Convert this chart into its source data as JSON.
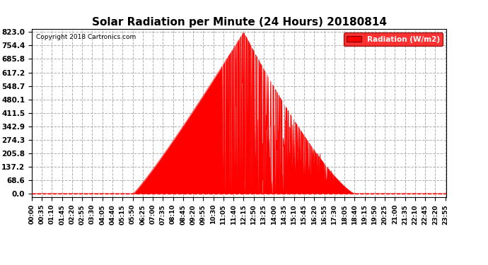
{
  "title": "Solar Radiation per Minute (24 Hours) 20180814",
  "copyright_text": "Copyright 2018 Cartronics.com",
  "legend_label": "Radiation (W/m2)",
  "y_ticks": [
    0.0,
    68.6,
    137.2,
    205.8,
    274.3,
    342.9,
    411.5,
    480.1,
    548.7,
    617.2,
    685.8,
    754.4,
    823.0
  ],
  "y_max": 823.0,
  "y_min": 0.0,
  "fill_color": "#ff0000",
  "line_color": "#ff0000",
  "bg_color": "#ffffff",
  "grid_color": "#b0b0b0",
  "dashed_line_color": "#ff0000",
  "x_tick_interval_minutes": 35,
  "total_minutes": 1440,
  "sunrise_minute": 352,
  "sunset_minute": 1120,
  "peak_minute": 735,
  "peak_value": 823.0
}
